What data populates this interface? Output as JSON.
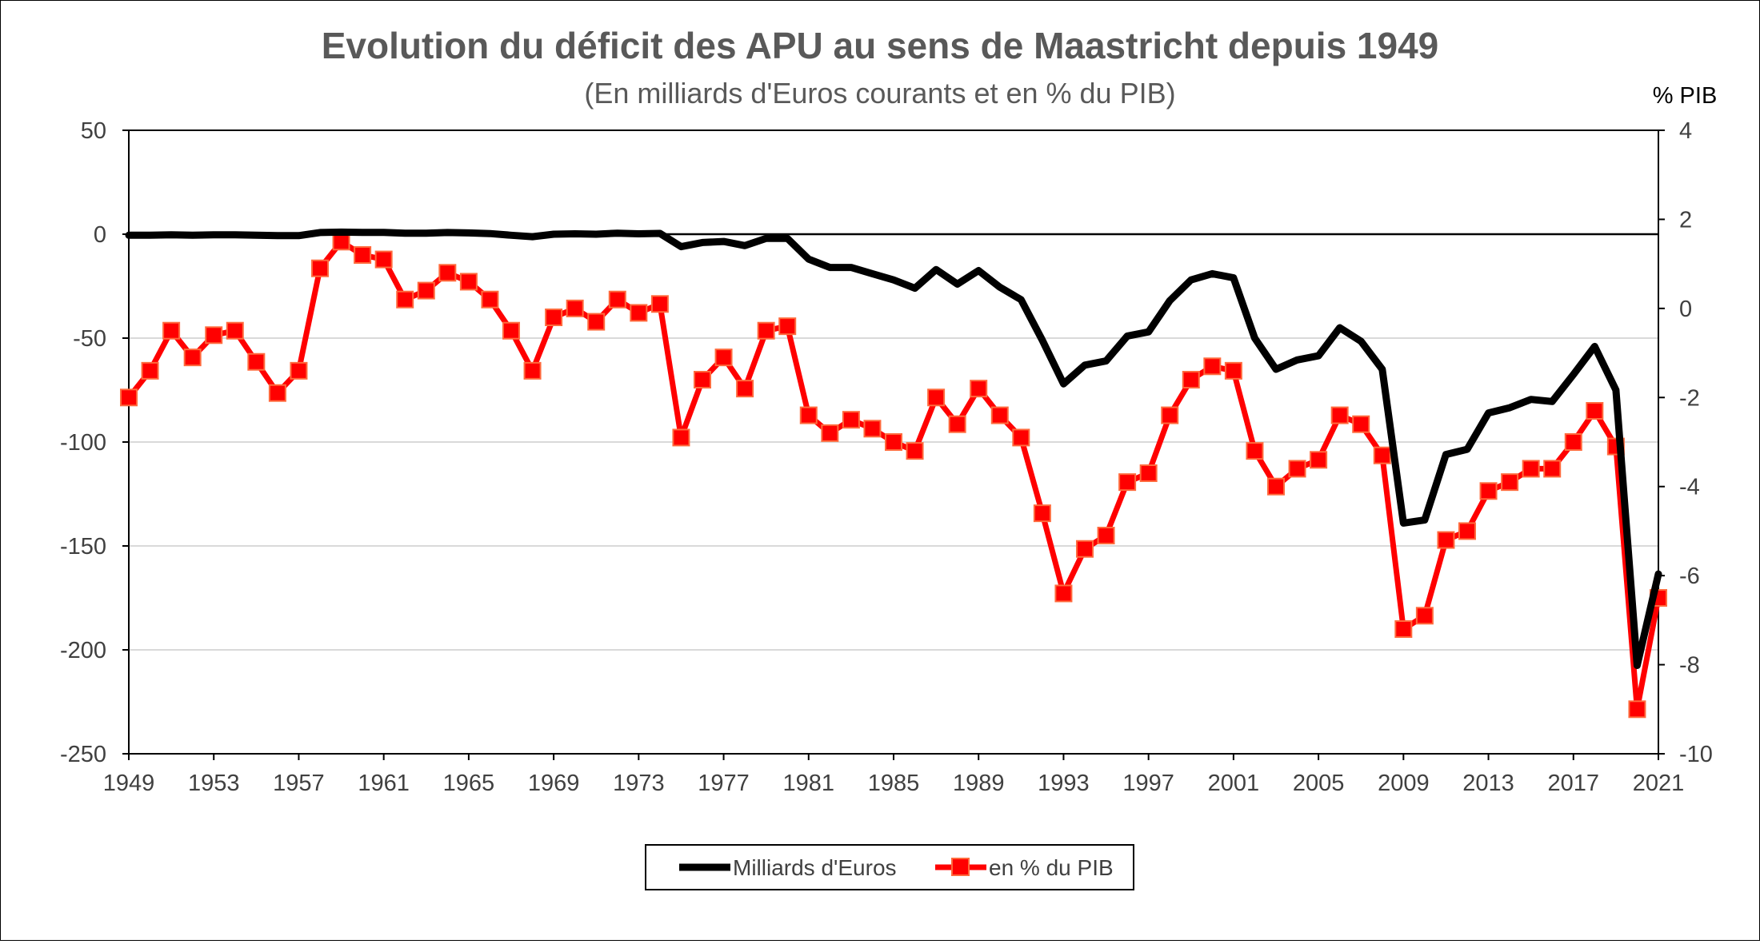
{
  "chart_data": {
    "type": "line",
    "title": "Evolution du déficit des APU au sens de Maastricht depuis 1949",
    "subtitle": "(En milliards d'Euros courants et en % du PIB)",
    "y2label": "% PIB",
    "x": [
      1949,
      1950,
      1951,
      1952,
      1953,
      1954,
      1955,
      1956,
      1957,
      1958,
      1959,
      1960,
      1961,
      1962,
      1963,
      1964,
      1965,
      1966,
      1967,
      1968,
      1969,
      1970,
      1971,
      1972,
      1973,
      1974,
      1975,
      1976,
      1977,
      1978,
      1979,
      1980,
      1981,
      1982,
      1983,
      1984,
      1985,
      1986,
      1987,
      1988,
      1989,
      1990,
      1991,
      1992,
      1993,
      1994,
      1995,
      1996,
      1997,
      1998,
      1999,
      2000,
      2001,
      2002,
      2003,
      2004,
      2005,
      2006,
      2007,
      2008,
      2009,
      2010,
      2011,
      2012,
      2013,
      2014,
      2015,
      2016,
      2017,
      2018,
      2019,
      2020,
      2021
    ],
    "x_tick_labels": [
      "1949",
      "1953",
      "1957",
      "1961",
      "1965",
      "1969",
      "1973",
      "1977",
      "1981",
      "1985",
      "1989",
      "1993",
      "1997",
      "2001",
      "2005",
      "2009",
      "2013",
      "2017",
      "2021"
    ],
    "y_left": {
      "ylim": [
        -250,
        50
      ],
      "ticks": [
        "50",
        "0",
        "-50",
        "-100",
        "-150",
        "-200",
        "-250"
      ]
    },
    "y_right": {
      "ylim": [
        -10,
        4
      ],
      "ticks": [
        "4",
        "2",
        "0",
        "-2",
        "-4",
        "-6",
        "-8",
        "-10"
      ]
    },
    "zero_line": 0,
    "grid": true,
    "legend_position": "bottom",
    "series": [
      {
        "name": "Milliards d'Euros",
        "axis": "left",
        "color": "#000000",
        "marker": "none",
        "values": [
          -0.5,
          -0.5,
          -0.3,
          -0.5,
          -0.3,
          -0.3,
          -0.5,
          -0.7,
          -0.7,
          0.8,
          1.0,
          0.9,
          0.9,
          0.5,
          0.5,
          0.8,
          0.6,
          0.3,
          -0.5,
          -1.2,
          0.0,
          0.2,
          0.0,
          0.5,
          0.2,
          0.4,
          -6.0,
          -4.0,
          -3.5,
          -5.5,
          -2.0,
          -2.0,
          -12.0,
          -16.0,
          -16.0,
          -19.0,
          -22.0,
          -26.0,
          -17.0,
          -24.0,
          -17.5,
          -25.5,
          -31.5,
          -51.0,
          -72.0,
          -63.0,
          -61.0,
          -49.0,
          -47.0,
          -32.0,
          -22.0,
          -19.0,
          -21.0,
          -50.0,
          -65.0,
          -60.5,
          -58.5,
          -45.0,
          -51.5,
          -65.0,
          -139.0,
          -137.5,
          -106.0,
          -103.5,
          -86.0,
          -83.5,
          -79.5,
          -80.5,
          -67.5,
          -54.0,
          -75.0,
          -207.5,
          -163.5
        ]
      },
      {
        "name": "en % du PIB",
        "axis": "right",
        "color": "#ff0000",
        "marker": "square",
        "values": [
          -2.0,
          -1.4,
          -0.5,
          -1.1,
          -0.6,
          -0.5,
          -1.2,
          -1.9,
          -1.4,
          0.9,
          1.5,
          1.2,
          1.1,
          0.2,
          0.4,
          0.8,
          0.6,
          0.2,
          -0.5,
          -1.4,
          -0.2,
          0.0,
          -0.3,
          0.2,
          -0.1,
          0.1,
          -2.9,
          -1.6,
          -1.1,
          -1.8,
          -0.5,
          -0.4,
          -2.4,
          -2.8,
          -2.5,
          -2.7,
          -3.0,
          -3.2,
          -2.0,
          -2.6,
          -1.8,
          -2.4,
          -2.9,
          -4.6,
          -6.4,
          -5.4,
          -5.1,
          -3.9,
          -3.7,
          -2.4,
          -1.6,
          -1.3,
          -1.4,
          -3.2,
          -4.0,
          -3.6,
          -3.4,
          -2.4,
          -2.6,
          -3.3,
          -7.2,
          -6.9,
          -5.2,
          -5.0,
          -4.1,
          -3.9,
          -3.6,
          -3.6,
          -3.0,
          -2.3,
          -3.1,
          -9.0,
          -6.5
        ]
      }
    ]
  }
}
